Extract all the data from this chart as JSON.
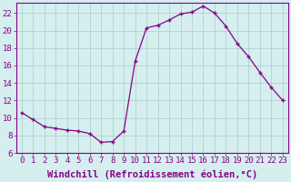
{
  "x": [
    0,
    1,
    2,
    3,
    4,
    5,
    6,
    7,
    8,
    9,
    10,
    11,
    12,
    13,
    14,
    15,
    16,
    17,
    18,
    19,
    20,
    21,
    22,
    23
  ],
  "y": [
    10.6,
    9.8,
    9.0,
    8.8,
    8.6,
    8.5,
    8.2,
    7.2,
    7.3,
    8.5,
    16.5,
    20.3,
    20.6,
    21.2,
    21.9,
    22.1,
    22.8,
    22.0,
    20.5,
    18.5,
    17.0,
    15.2,
    13.5,
    12.0
  ],
  "line_color": "#880088",
  "marker": "+",
  "marker_size": 3.5,
  "marker_lw": 1.0,
  "line_width": 0.9,
  "bg_color": "#d5eeee",
  "grid_color": "#aacccc",
  "ylabel_values": [
    6,
    8,
    10,
    12,
    14,
    16,
    18,
    20,
    22
  ],
  "xlabel": "Windchill (Refroidissement éolien,°C)",
  "xlabel_fontsize": 7.5,
  "tick_fontsize": 6.5,
  "xlim": [
    -0.5,
    23.5
  ],
  "ylim": [
    6,
    23.2
  ]
}
